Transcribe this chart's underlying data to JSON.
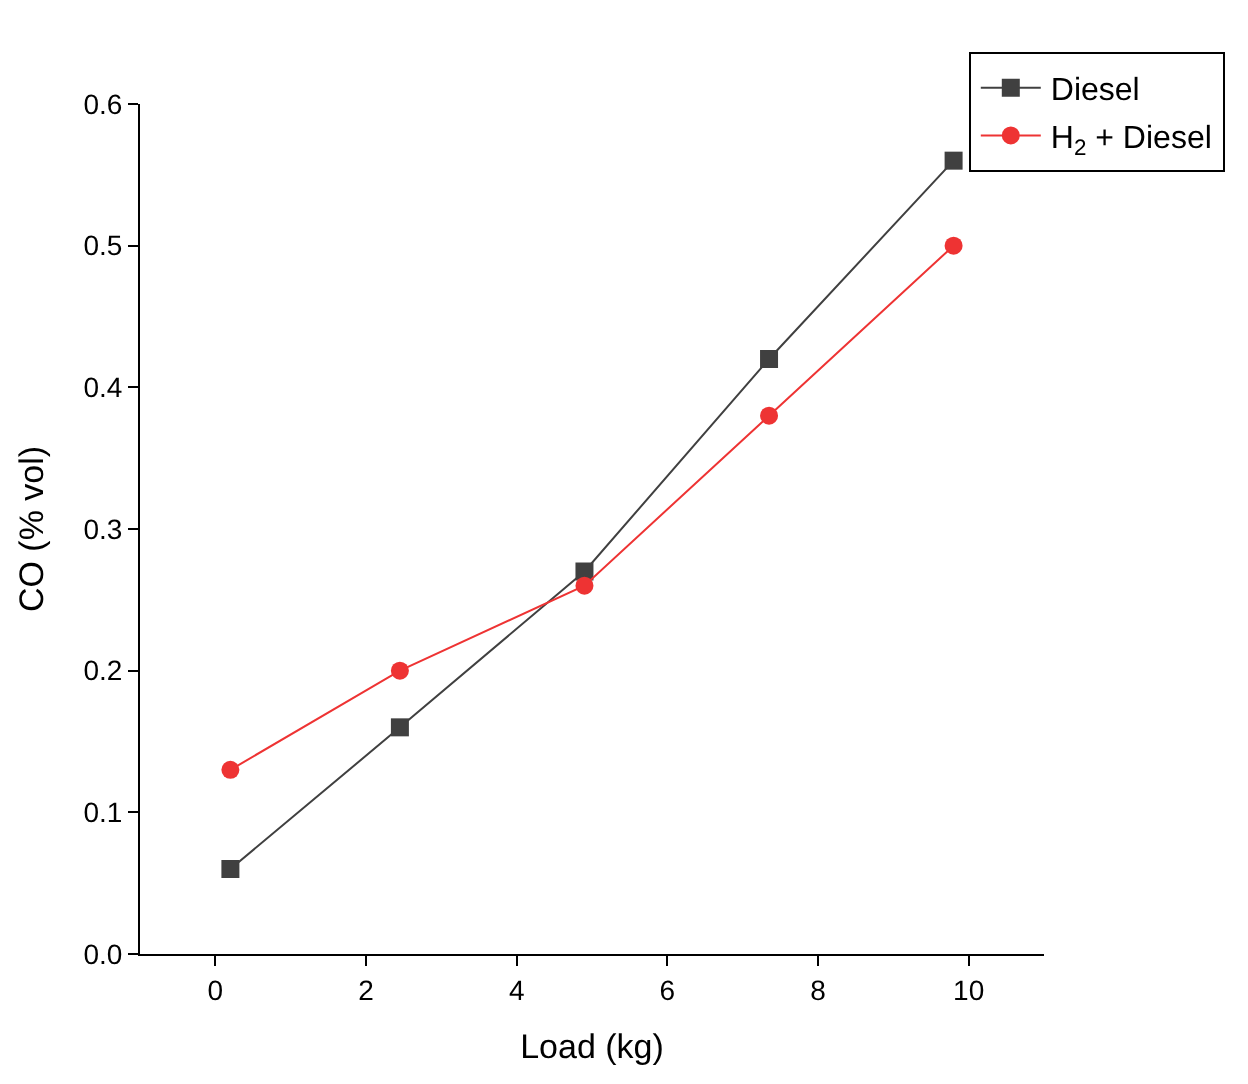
{
  "chart_data": {
    "type": "line",
    "xlabel": "Load (kg)",
    "ylabel": "CO (% vol)",
    "x": [
      0.2,
      2.45,
      4.9,
      7.35,
      9.8
    ],
    "series": [
      {
        "name": "Diesel",
        "color": "#404040",
        "marker": "square",
        "values": [
          0.06,
          0.16,
          0.27,
          0.42,
          0.56
        ]
      },
      {
        "name": "H$_{2}$ + Diesel",
        "color": "#ee3333",
        "marker": "circle",
        "values": [
          0.13,
          0.2,
          0.26,
          0.38,
          0.5
        ]
      }
    ],
    "xlim": [
      -1,
      11
    ],
    "xticks": [
      0,
      2,
      4,
      6,
      8,
      10
    ],
    "ylim": [
      0,
      0.6
    ],
    "yticks": [
      {
        "value": 0,
        "label": "0.0"
      },
      0.1,
      0.2,
      0.3,
      0.4,
      0.5,
      0.6
    ],
    "grid": false,
    "legend": "top right",
    "line_style": "solid"
  }
}
